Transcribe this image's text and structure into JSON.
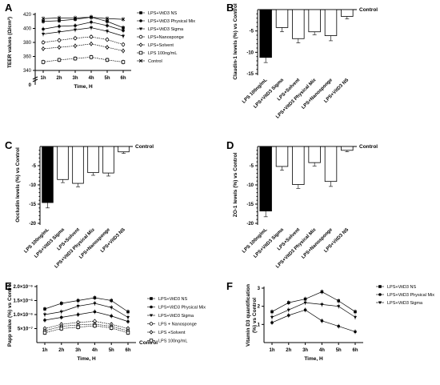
{
  "chart_data": [
    {
      "panel": "A",
      "type": "line",
      "x": [
        "1h",
        "2h",
        "3h",
        "4h",
        "5h",
        "6h"
      ],
      "xlabel": "Time, H",
      "ylabel": "TEER values (Ω/cm²)",
      "yticks": [
        340,
        360,
        380,
        400,
        420
      ],
      "ylim": [
        340,
        420
      ],
      "axis_break_label": "0",
      "series": [
        {
          "name": "LPS+VitD3 NS",
          "marker": "square",
          "values": [
            410,
            411,
            413,
            416,
            410,
            401
          ]
        },
        {
          "name": "LPS+VitD3 Physical Mix",
          "marker": "circle",
          "values": [
            399,
            403,
            404,
            409,
            404,
            397
          ]
        },
        {
          "name": "LPS+VitD3 Sigma",
          "marker": "triangle-down",
          "values": [
            392,
            395,
            398,
            401,
            396,
            389
          ]
        },
        {
          "name": "LPS+Nanosponge",
          "marker": "open-circle",
          "values": [
            380,
            383,
            386,
            388,
            384,
            377
          ]
        },
        {
          "name": "LPS+Solvent",
          "marker": "open-diamond",
          "values": [
            371,
            373,
            375,
            378,
            373,
            368
          ]
        },
        {
          "name": "LPS 100ng/mL",
          "marker": "open-square",
          "values": [
            352,
            355,
            357,
            359,
            355,
            352
          ]
        },
        {
          "name": "Control",
          "marker": "x",
          "values": [
            414,
            415,
            415,
            416,
            414,
            413
          ]
        }
      ]
    },
    {
      "panel": "B",
      "type": "bar",
      "ylabel": "Claudin-1 levels (%) vs Control",
      "reference_label": "Control",
      "yticks": [
        -5,
        -10,
        -15
      ],
      "ylim": [
        -15,
        0
      ],
      "categories": [
        "LPS 100ng/mL",
        "LPS+VitD3 Sigma",
        "LPS+Solvent",
        "LPS+VitD3 Physical Mix",
        "LPS+Nanosponge",
        "LPS+VitD3 NS"
      ],
      "values": [
        -11.2,
        -4.2,
        -6.8,
        -5.2,
        -6.1,
        -1.6
      ],
      "errors": [
        1.2,
        1.0,
        1.0,
        0.7,
        1.2,
        0.6
      ],
      "fills": [
        "black",
        "white",
        "white",
        "white",
        "white",
        "white"
      ]
    },
    {
      "panel": "C",
      "type": "bar",
      "ylabel": "Occludin levels (%) vs Control",
      "reference_label": "Control",
      "yticks": [
        -5,
        -10,
        -15,
        -20
      ],
      "ylim": [
        -20,
        0
      ],
      "categories": [
        "LPS 100ng/mL",
        "LPS+VitD3 Sigma",
        "LPS+Solvent",
        "LPS+VitD3 Physical Mix",
        "LPS+Nanosponge",
        "LPS+VitD3 NS"
      ],
      "values": [
        -14.6,
        -8.6,
        -9.6,
        -6.8,
        -6.9,
        -1.4
      ],
      "errors": [
        1.4,
        0.8,
        0.9,
        0.7,
        0.8,
        0.4
      ],
      "fills": [
        "black",
        "white",
        "white",
        "white",
        "white",
        "white"
      ]
    },
    {
      "panel": "D",
      "type": "bar",
      "ylabel": "ZO-1 levels (%) vs Control",
      "reference_label": "Control",
      "yticks": [
        -5,
        -10,
        -15,
        -20
      ],
      "ylim": [
        -20,
        0
      ],
      "categories": [
        "LPS 100ng/mL",
        "LPS+VitD3 Sigma",
        "LPS+Solvent",
        "LPS+VitD3 Physical Mix",
        "LPS+Nanosponge",
        "LPS+VitD3 NS"
      ],
      "values": [
        -16.8,
        -5.2,
        -9.9,
        -4.2,
        -9.1,
        -1.0
      ],
      "errors": [
        1.5,
        1.0,
        1.0,
        0.9,
        1.3,
        0.4
      ],
      "fills": [
        "black",
        "white",
        "white",
        "white",
        "white",
        "white"
      ]
    },
    {
      "panel": "E",
      "type": "line",
      "x": [
        "1h",
        "2h",
        "3h",
        "4h",
        "5h",
        "6h"
      ],
      "xlabel": "Time, H",
      "ylabel": "Papp value (%) vs Control",
      "reference_label": "Control",
      "yticks": [
        "5×10⁻⁷",
        "1.0×10⁻⁶",
        "1.5×10⁻⁶",
        "2.0×10⁻⁶"
      ],
      "ytick_values": [
        0.5,
        1.0,
        1.5,
        2.0
      ],
      "ylim": [
        0,
        2.0
      ],
      "series": [
        {
          "name": "LPS+VitD3 NS",
          "marker": "square",
          "values": [
            1.2,
            1.4,
            1.5,
            1.6,
            1.5,
            1.1
          ]
        },
        {
          "name": "LPS+VitD3 Physical Mix",
          "marker": "circle",
          "values": [
            0.8,
            0.9,
            1.0,
            1.1,
            0.95,
            0.75
          ]
        },
        {
          "name": "LPS+VitD3 Sigma",
          "marker": "triangle-down",
          "values": [
            1.0,
            1.1,
            1.3,
            1.4,
            1.25,
            0.9
          ]
        },
        {
          "name": "LPS + Nanosponge",
          "marker": "open-circle",
          "values": [
            0.5,
            0.65,
            0.72,
            0.76,
            0.65,
            0.5
          ]
        },
        {
          "name": "LPS +Solvent",
          "marker": "open-diamond",
          "values": [
            0.42,
            0.58,
            0.63,
            0.66,
            0.58,
            0.42
          ]
        },
        {
          "name": "LPS 100ng/mL",
          "marker": "open-square",
          "values": [
            0.35,
            0.5,
            0.55,
            0.6,
            0.52,
            0.35
          ]
        }
      ]
    },
    {
      "panel": "F",
      "type": "line",
      "x": [
        "1h",
        "2h",
        "3h",
        "4h",
        "5h",
        "6h"
      ],
      "xlabel": "Time, H",
      "ylabel": "Vitamin D3 quantification (%) vs Control",
      "yticks": [
        1,
        2,
        3
      ],
      "ylim": [
        0,
        3
      ],
      "series": [
        {
          "name": "LPS+VitD3 NS",
          "marker": "square",
          "values": [
            1.7,
            2.2,
            2.4,
            2.8,
            2.3,
            1.7
          ]
        },
        {
          "name": "LPS+VitD3 Physical Mix",
          "marker": "circle",
          "values": [
            1.1,
            1.5,
            1.8,
            1.2,
            0.9,
            0.6
          ]
        },
        {
          "name": "LPS+VitD3 Sigma",
          "marker": "triangle-down",
          "values": [
            1.4,
            1.8,
            2.2,
            2.1,
            2.0,
            1.4
          ]
        }
      ]
    }
  ]
}
